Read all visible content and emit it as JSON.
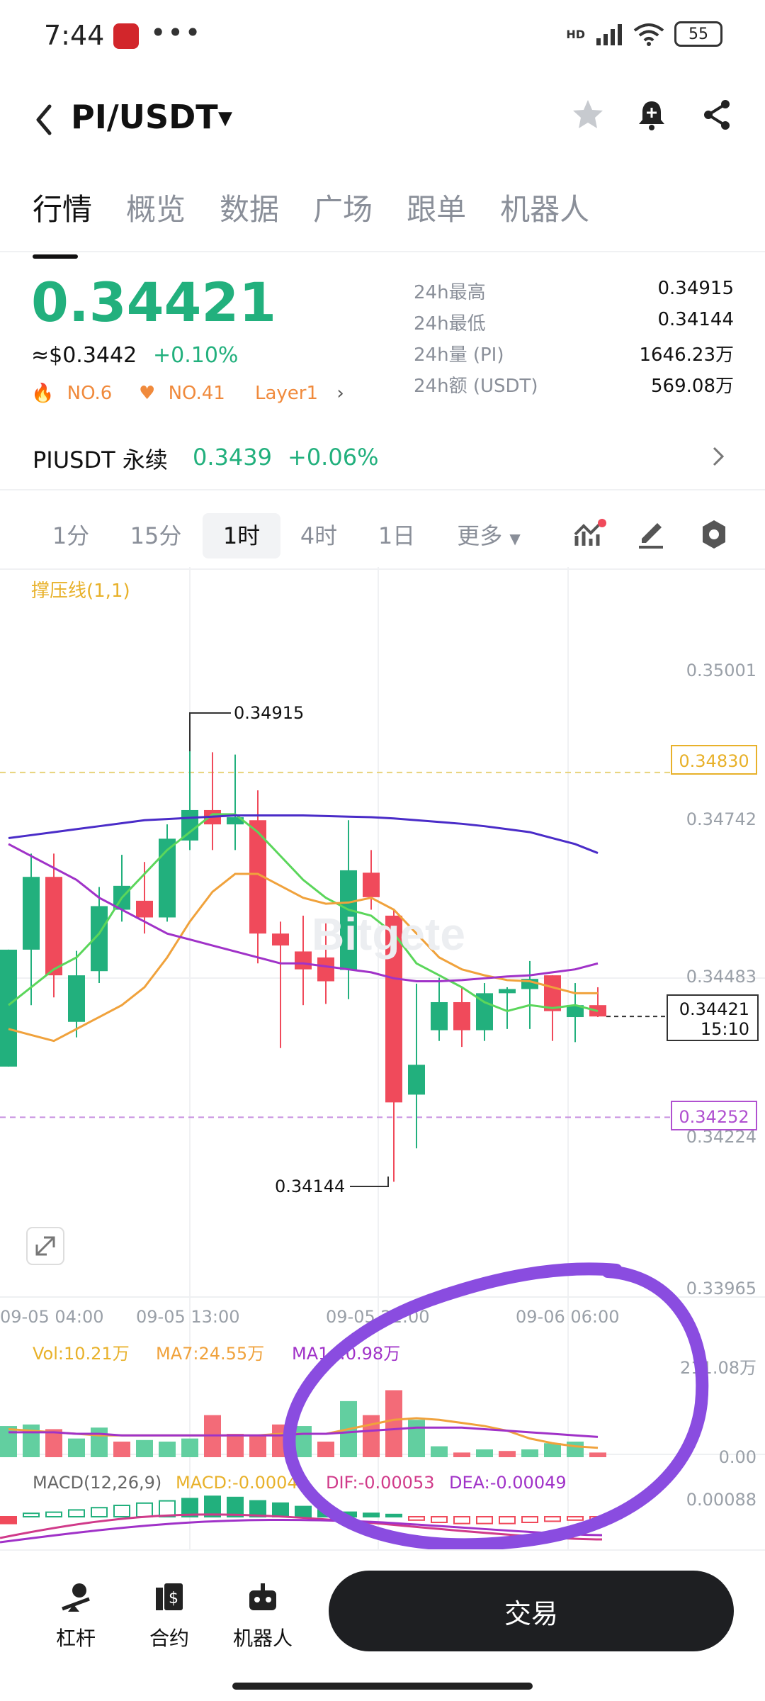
{
  "status_bar": {
    "time": "7:44",
    "dots": "•••",
    "network": "HD",
    "battery": "55"
  },
  "header": {
    "back_icon": "chevron-left-icon",
    "pair": "PI/USDT",
    "star_icon": "star-icon",
    "alarm_icon": "bell-plus-icon",
    "share_icon": "share-icon"
  },
  "tabs": [
    "行情",
    "概览",
    "数据",
    "广场",
    "跟单",
    "机器人"
  ],
  "price": {
    "last": "0.34421",
    "usd": "≈$0.3442",
    "change": "+0.10%",
    "rank1": "NO.6",
    "rank2": "NO.41",
    "tag": "Layer1"
  },
  "stats": [
    {
      "label": "24h最高",
      "value": "0.34915"
    },
    {
      "label": "24h最低",
      "value": "0.34144"
    },
    {
      "label": "24h量 (PI)",
      "value": "1646.23万"
    },
    {
      "label": "24h额 (USDT)",
      "value": "569.08万"
    }
  ],
  "perpetual": {
    "name": "PIUSDT 永续",
    "price": "0.3439",
    "change": "+0.06%"
  },
  "timeframes": [
    "1分",
    "15分",
    "1时",
    "4时",
    "1日",
    "更多"
  ],
  "chart": {
    "indicator_label": "撑压线(1,1)",
    "watermark": "Bitgete",
    "y_ticks": [
      "0.35001",
      "0.34742",
      "0.34483",
      "0.34224",
      "0.33965"
    ],
    "resistance_label": "0.34830",
    "support_label": "0.34252",
    "current_price": "0.34421",
    "countdown": "15:10",
    "high_label": "0.34915",
    "low_label": "0.34144",
    "x_ticks": [
      "09-05 04:00",
      "09-05 13:00",
      "09-05 21:00",
      "09-06 06:00"
    ],
    "vol_legend": {
      "vol": "Vol:10.21万",
      "ma7": "MA7:24.55万",
      "ma14": "MA14:0.98万"
    },
    "vol_ticks": [
      "211.08万",
      "0.00"
    ],
    "macd_legend": {
      "name": "MACD(12,26,9)",
      "macd": "MACD:-0.00043",
      "dif": "DIF:-0.00053",
      "dea": "DEA:-0.00049"
    },
    "macd_tick": "0.00088"
  },
  "chart_data": {
    "type": "candlestick",
    "ylim": [
      0.33965,
      0.35001
    ],
    "candles": [
      {
        "o": 0.34337,
        "h": 0.34533,
        "l": 0.34337,
        "c": 0.34533
      },
      {
        "o": 0.34533,
        "h": 0.34694,
        "l": 0.3444,
        "c": 0.34655
      },
      {
        "o": 0.34655,
        "h": 0.34694,
        "l": 0.34453,
        "c": 0.3449
      },
      {
        "o": 0.34412,
        "h": 0.34531,
        "l": 0.34386,
        "c": 0.3449
      },
      {
        "o": 0.34497,
        "h": 0.34638,
        "l": 0.34477,
        "c": 0.34606
      },
      {
        "o": 0.346,
        "h": 0.34692,
        "l": 0.3458,
        "c": 0.3464
      },
      {
        "o": 0.34615,
        "h": 0.3468,
        "l": 0.3456,
        "c": 0.34587
      },
      {
        "o": 0.34587,
        "h": 0.34743,
        "l": 0.3458,
        "c": 0.34719
      },
      {
        "o": 0.34716,
        "h": 0.3488,
        "l": 0.347,
        "c": 0.34767
      },
      {
        "o": 0.34767,
        "h": 0.34864,
        "l": 0.347,
        "c": 0.34743
      },
      {
        "o": 0.34743,
        "h": 0.3486,
        "l": 0.347,
        "c": 0.34755
      },
      {
        "o": 0.3475,
        "h": 0.348,
        "l": 0.3451,
        "c": 0.3456
      },
      {
        "o": 0.3456,
        "h": 0.3458,
        "l": 0.34368,
        "c": 0.3454
      },
      {
        "o": 0.3453,
        "h": 0.3459,
        "l": 0.3444,
        "c": 0.345
      },
      {
        "o": 0.3452,
        "h": 0.3458,
        "l": 0.34442,
        "c": 0.3448
      },
      {
        "o": 0.34499,
        "h": 0.3475,
        "l": 0.3445,
        "c": 0.34666
      },
      {
        "o": 0.34662,
        "h": 0.347,
        "l": 0.346,
        "c": 0.34621
      },
      {
        "o": 0.3459,
        "h": 0.346,
        "l": 0.34144,
        "c": 0.34277
      },
      {
        "o": 0.3429,
        "h": 0.34476,
        "l": 0.342,
        "c": 0.3434
      },
      {
        "o": 0.34398,
        "h": 0.34486,
        "l": 0.3438,
        "c": 0.34445
      },
      {
        "o": 0.34445,
        "h": 0.3447,
        "l": 0.3437,
        "c": 0.34398
      },
      {
        "o": 0.34398,
        "h": 0.34477,
        "l": 0.3438,
        "c": 0.3446
      },
      {
        "o": 0.3446,
        "h": 0.3447,
        "l": 0.344,
        "c": 0.34467
      },
      {
        "o": 0.34467,
        "h": 0.34514,
        "l": 0.344,
        "c": 0.34484
      },
      {
        "o": 0.3449,
        "h": 0.3449,
        "l": 0.3438,
        "c": 0.3443
      },
      {
        "o": 0.3442,
        "h": 0.34477,
        "l": 0.34378,
        "c": 0.3444
      },
      {
        "o": 0.3444,
        "h": 0.3447,
        "l": 0.3442,
        "c": 0.34421
      }
    ],
    "series": [
      {
        "values": [
          0.3444,
          0.3447,
          0.345,
          0.3452,
          0.3456,
          0.3462,
          0.3466,
          0.347,
          0.3473,
          0.3476,
          0.3476,
          0.3473,
          0.3469,
          0.3465,
          0.3462,
          0.346,
          0.3459,
          0.3456,
          0.3451,
          0.3449,
          0.3447,
          0.34445,
          0.3443,
          0.3444,
          0.34435,
          0.3444,
          0.3443
        ]
      },
      {
        "values": [
          0.344,
          0.3439,
          0.3438,
          0.344,
          0.3442,
          0.3444,
          0.3447,
          0.3452,
          0.3458,
          0.3463,
          0.3466,
          0.3466,
          0.3464,
          0.3462,
          0.3461,
          0.34612,
          0.3462,
          0.346,
          0.3456,
          0.3452,
          0.345,
          0.3449,
          0.34482,
          0.3448,
          0.3447,
          0.3446,
          0.3446
        ]
      },
      {
        "values": [
          0.3471,
          0.3469,
          0.3467,
          0.3465,
          0.3462,
          0.346,
          0.3458,
          0.3456,
          0.3455,
          0.3454,
          0.3453,
          0.3452,
          0.3451,
          0.3451,
          0.34505,
          0.345,
          0.34495,
          0.34485,
          0.3448,
          0.3448,
          0.34482,
          0.34485,
          0.34488,
          0.3449,
          0.34495,
          0.345,
          0.3451
        ]
      },
      {
        "values": [
          0.3472,
          0.34725,
          0.3473,
          0.34735,
          0.3474,
          0.34745,
          0.3475,
          0.34752,
          0.34754,
          0.34756,
          0.34758,
          0.34758,
          0.34758,
          0.34758,
          0.34757,
          0.34756,
          0.34755,
          0.34753,
          0.3475,
          0.34747,
          0.34744,
          0.3474,
          0.34735,
          0.3473,
          0.3472,
          0.3471,
          0.34695
        ]
      }
    ],
    "resistance": 0.3483,
    "support": 0.34252,
    "volume": [
      0.2,
      0.21,
      0.18,
      0.12,
      0.19,
      0.1,
      0.11,
      0.1,
      0.12,
      0.27,
      0.15,
      0.14,
      0.21,
      0.2,
      0.1,
      0.36,
      0.27,
      0.43,
      0.24,
      0.07,
      0.03,
      0.05,
      0.04,
      0.05,
      0.09,
      0.1,
      0.03
    ],
    "volume_colors": [
      "up",
      "up",
      "down",
      "up",
      "up",
      "down",
      "up",
      "up",
      "up",
      "down",
      "down",
      "down",
      "down",
      "up",
      "down",
      "up",
      "down",
      "down",
      "up",
      "up",
      "down",
      "up",
      "down",
      "up",
      "up",
      "up",
      "down"
    ],
    "vol_ma7": [
      0.18,
      0.17,
      0.16,
      0.15,
      0.14,
      0.14,
      0.14,
      0.14,
      0.14,
      0.14,
      0.14,
      0.14,
      0.15,
      0.15,
      0.15,
      0.18,
      0.21,
      0.24,
      0.25,
      0.24,
      0.22,
      0.2,
      0.17,
      0.12,
      0.09,
      0.07,
      0.06
    ],
    "vol_ma14": [
      0.16,
      0.16,
      0.16,
      0.15,
      0.15,
      0.14,
      0.14,
      0.14,
      0.14,
      0.14,
      0.14,
      0.14,
      0.14,
      0.15,
      0.15,
      0.16,
      0.17,
      0.18,
      0.19,
      0.19,
      0.19,
      0.18,
      0.17,
      0.16,
      0.15,
      0.14,
      0.13
    ],
    "macd_hist": [
      -0.6,
      0.3,
      0.4,
      0.6,
      0.8,
      1.0,
      1.2,
      1.4,
      1.6,
      1.8,
      1.7,
      1.4,
      1.2,
      0.9,
      0.6,
      0.4,
      0.3,
      0.2,
      -0.3,
      -0.5,
      -0.6,
      -0.6,
      -0.6,
      -0.5,
      -0.4,
      -0.3,
      -0.3
    ]
  },
  "bottom_bar": {
    "items": [
      {
        "label": "杠杆",
        "icon": "leverage-icon"
      },
      {
        "label": "合约",
        "icon": "contract-icon"
      },
      {
        "label": "机器人",
        "icon": "robot-icon"
      }
    ],
    "trade": "交易"
  },
  "colors": {
    "up": "#22b07d",
    "down": "#f04a5b",
    "ma7": "#f0a23c",
    "ma14": "#5bd65b",
    "ma_purple": "#a032c8",
    "ma_blue": "#4a2cc8",
    "annotation": "#8a4ce0"
  }
}
